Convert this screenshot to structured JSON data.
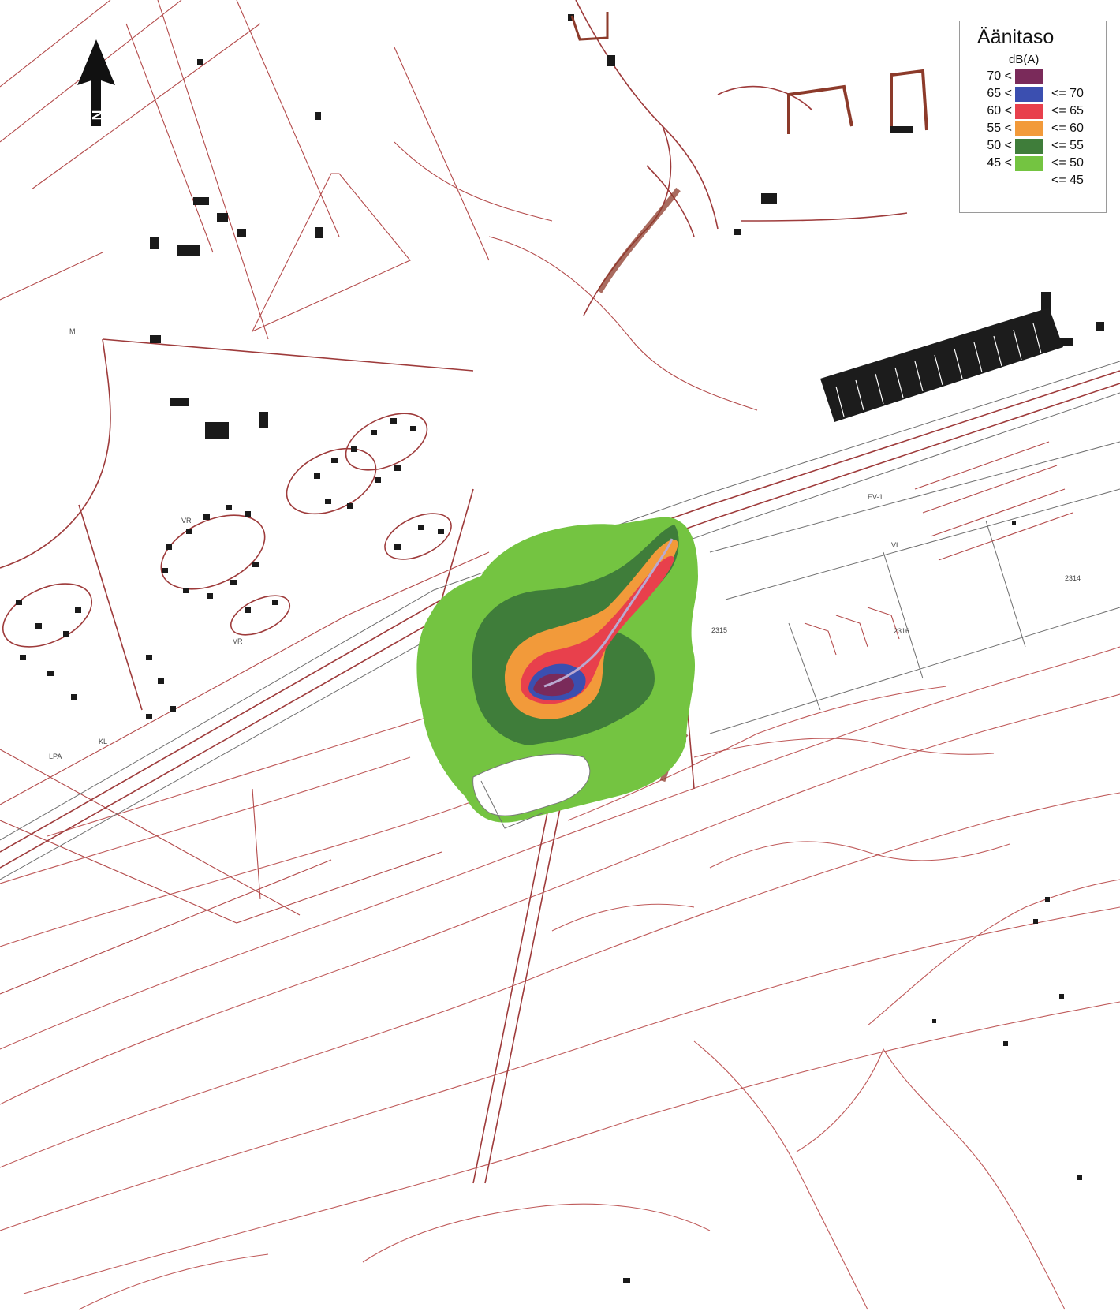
{
  "legend": {
    "title": "Äänitaso",
    "unit": "dB(A)",
    "rows": [
      {
        "low": "70 <",
        "high": "",
        "color": "#7a2a5a"
      },
      {
        "low": "65 <",
        "high": "<= 70",
        "color": "#3b4fb0"
      },
      {
        "low": "60 <",
        "high": "<= 65",
        "color": "#e8404c"
      },
      {
        "low": "55 <",
        "high": "<= 60",
        "color": "#f29a3a"
      },
      {
        "low": "50 <",
        "high": "<= 55",
        "color": "#3f7d3a"
      },
      {
        "low": "45 <",
        "high": "<= 50",
        "color": "#74c441"
      },
      {
        "low": "",
        "high": "<= 45",
        "color": ""
      }
    ]
  },
  "north_arrow": {
    "label": "N",
    "icon": "north-arrow-icon"
  },
  "map_labels": {
    "ev1": "EV-1",
    "vl": "VL",
    "vr": "VR",
    "vr2": "VR",
    "kl": "KL",
    "lpa": "LPA",
    "m": "M",
    "plot_2315": "2315",
    "plot_2316": "2316",
    "plot_2314": "2314"
  },
  "colors": {
    "contour": "#b84848",
    "road": "#9e3b3b",
    "building": "#1a1a1a",
    "zone_70": "#7a2a5a",
    "zone_65": "#3b4fb0",
    "zone_60": "#e8404c",
    "zone_55": "#f29a3a",
    "zone_50": "#3f7d3a",
    "zone_45": "#74c441"
  }
}
